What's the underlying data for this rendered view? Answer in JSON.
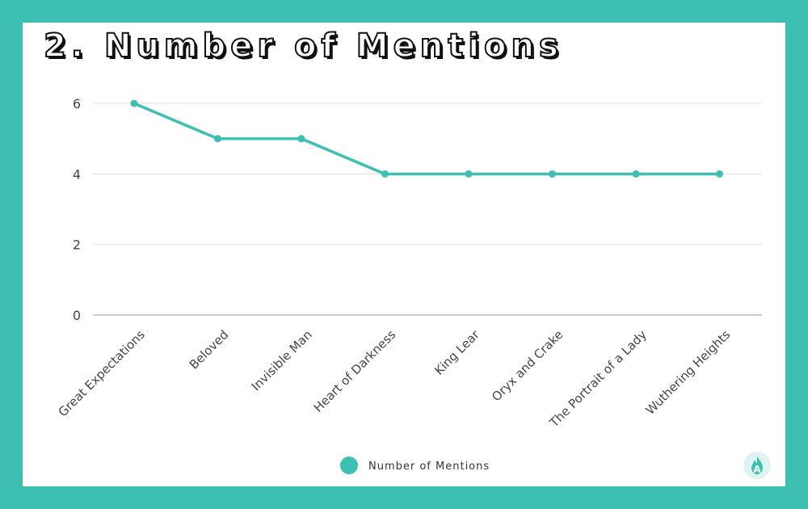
{
  "title": "2. Number of Mentions",
  "colors": {
    "frame": "#3dbfb1",
    "series": "#3dbfb1",
    "grid": "#dddddd",
    "axis": "#999999"
  },
  "logo": {
    "icon": "flame-logo-icon",
    "letter": "A"
  },
  "chart_data": {
    "type": "line",
    "categories": [
      "Great Expectations",
      "Beloved",
      "Invisible Man",
      "Heart of Darkness",
      "King Lear",
      "Oryx and Crake",
      "The Portrait of a Lady",
      "Wuthering Heights"
    ],
    "series": [
      {
        "name": "Number of Mentions",
        "values": [
          6,
          5,
          5,
          4,
          4,
          4,
          4,
          4
        ]
      }
    ],
    "yticks": [
      0,
      2,
      4,
      6
    ],
    "ylim": [
      0,
      6
    ],
    "grid": true,
    "legend": "bottom-center"
  }
}
